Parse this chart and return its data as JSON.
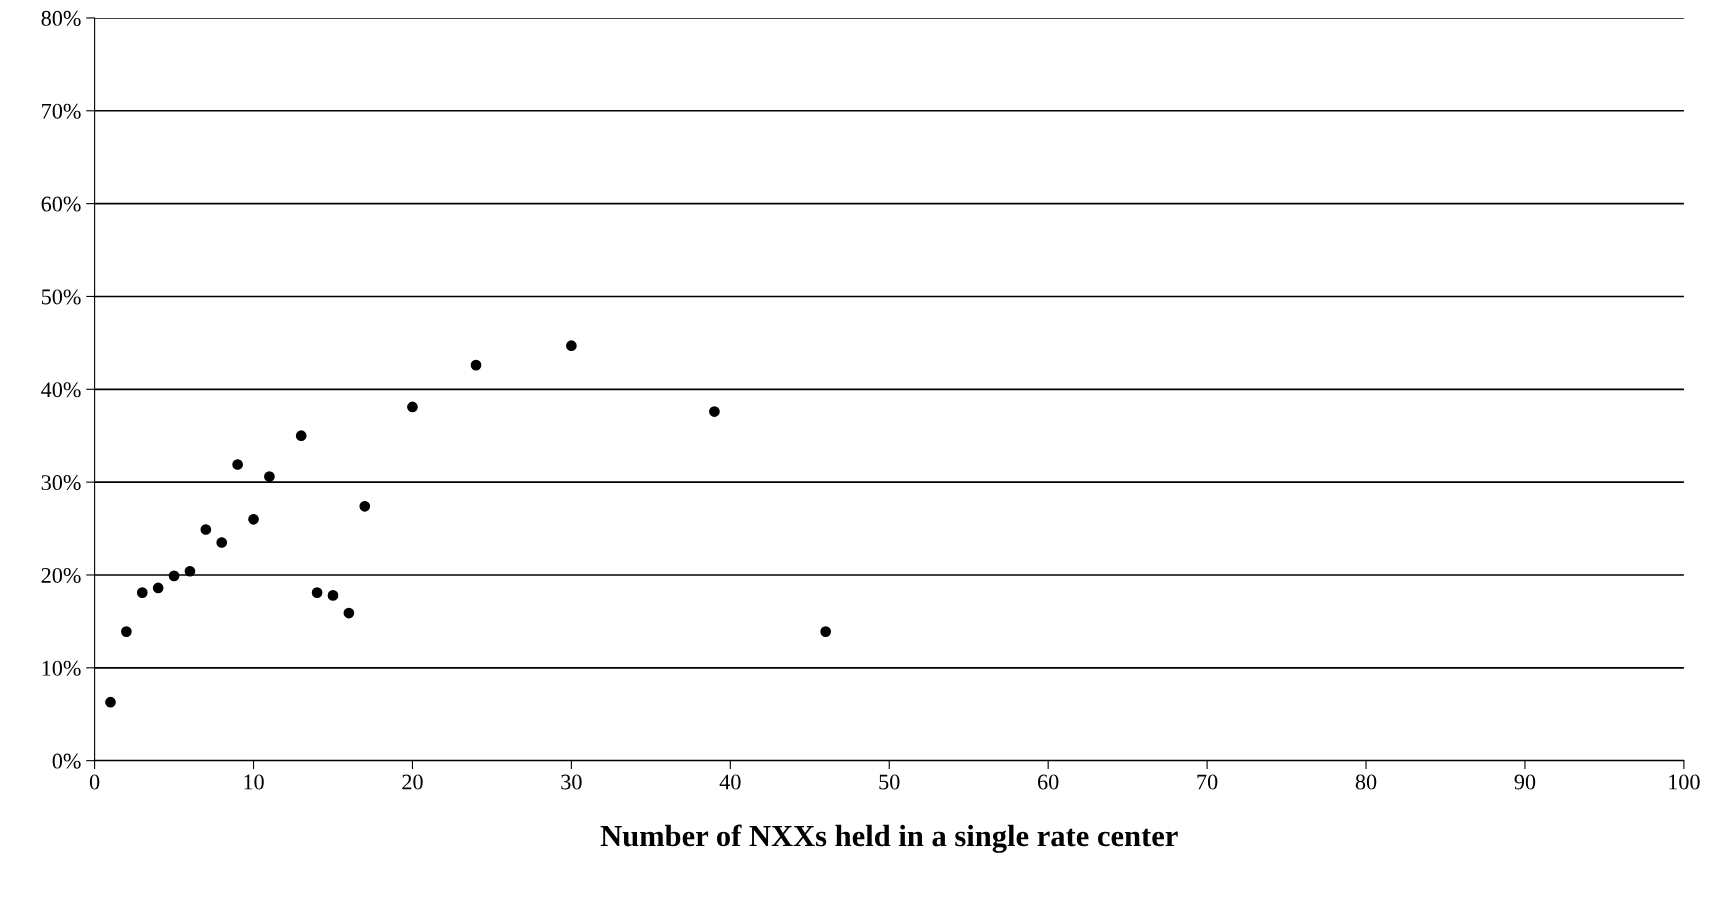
{
  "chart_data": {
    "type": "scatter",
    "xlabel": "Number of NXXs held in a single rate center",
    "x": [
      1,
      2,
      3,
      4,
      5,
      6,
      7,
      8,
      9,
      10,
      11,
      13,
      14,
      15,
      16,
      17,
      20,
      24,
      30,
      39,
      46
    ],
    "series": [
      {
        "color": "#000000",
        "values": [
          6.3,
          13.9,
          18.1,
          18.6,
          19.9,
          20.4,
          24.9,
          23.5,
          31.9,
          26.0,
          30.6,
          35.0,
          18.1,
          17.8,
          15.9,
          27.4,
          38.1,
          42.6,
          44.7,
          37.6,
          13.9
        ]
      }
    ],
    "xlim": [
      0,
      100
    ],
    "xticks": [
      0,
      10,
      20,
      30,
      40,
      50,
      60,
      70,
      80,
      90,
      100
    ],
    "ylim": [
      0,
      80
    ],
    "yticks": [
      {
        "value": 0,
        "label": "0%"
      },
      {
        "value": 10,
        "label": "10%"
      },
      {
        "value": 20,
        "label": "20%"
      },
      {
        "value": 30,
        "label": "30%"
      },
      {
        "value": 40,
        "label": "40%"
      },
      {
        "value": 50,
        "label": "50%"
      },
      {
        "value": 60,
        "label": "60%"
      },
      {
        "value": 70,
        "label": "70%"
      },
      {
        "value": 80,
        "label": "80%"
      }
    ],
    "grid": "y",
    "marker": "circle"
  }
}
